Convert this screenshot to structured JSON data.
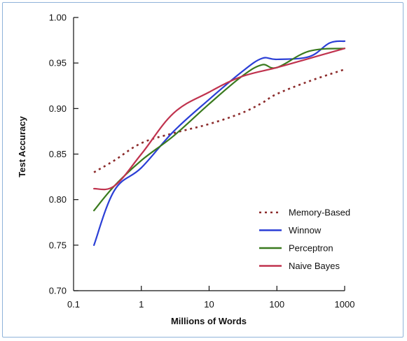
{
  "chart_data": {
    "type": "line",
    "title": "",
    "xlabel": "Millions of Words",
    "ylabel": "Test Accuracy",
    "x_scale": "log",
    "xlim": [
      0.1,
      1000
    ],
    "ylim": [
      0.7,
      1.0
    ],
    "x_ticks": [
      0.1,
      1,
      10,
      100,
      1000
    ],
    "x_tick_labels": [
      "0.1",
      "1",
      "10",
      "100",
      "1000"
    ],
    "y_ticks": [
      0.7,
      0.75,
      0.8,
      0.85,
      0.9,
      0.95,
      1.0
    ],
    "y_tick_labels": [
      "0.70",
      "0.75",
      "0.80",
      "0.85",
      "0.90",
      "0.95",
      "1.00"
    ],
    "grid": false,
    "legend_position": "bottom-right",
    "series": [
      {
        "name": "Memory-Based",
        "color": "#8b2a2a",
        "dash": "dotted",
        "points": [
          [
            0.2,
            0.83
          ],
          [
            0.4,
            0.843
          ],
          [
            1,
            0.862
          ],
          [
            3,
            0.873
          ],
          [
            10,
            0.883
          ],
          [
            30,
            0.895
          ],
          [
            60,
            0.906
          ],
          [
            100,
            0.916
          ],
          [
            300,
            0.93
          ],
          [
            1000,
            0.943
          ]
        ]
      },
      {
        "name": "Winnow",
        "color": "#2b3fd6",
        "dash": "solid",
        "points": [
          [
            0.2,
            0.75
          ],
          [
            0.4,
            0.81
          ],
          [
            1,
            0.835
          ],
          [
            3,
            0.875
          ],
          [
            10,
            0.91
          ],
          [
            30,
            0.94
          ],
          [
            60,
            0.955
          ],
          [
            100,
            0.954
          ],
          [
            300,
            0.957
          ],
          [
            600,
            0.972
          ],
          [
            1000,
            0.974
          ]
        ]
      },
      {
        "name": "Perceptron",
        "color": "#3a7a1e",
        "dash": "solid",
        "points": [
          [
            0.2,
            0.788
          ],
          [
            0.4,
            0.815
          ],
          [
            1,
            0.843
          ],
          [
            3,
            0.87
          ],
          [
            10,
            0.905
          ],
          [
            30,
            0.935
          ],
          [
            60,
            0.948
          ],
          [
            100,
            0.945
          ],
          [
            300,
            0.963
          ],
          [
            1000,
            0.966
          ]
        ]
      },
      {
        "name": "Naive Bayes",
        "color": "#c0334e",
        "dash": "solid",
        "points": [
          [
            0.2,
            0.812
          ],
          [
            0.4,
            0.815
          ],
          [
            1,
            0.85
          ],
          [
            3,
            0.895
          ],
          [
            10,
            0.918
          ],
          [
            30,
            0.935
          ],
          [
            100,
            0.945
          ],
          [
            300,
            0.955
          ],
          [
            1000,
            0.966
          ]
        ]
      }
    ]
  }
}
